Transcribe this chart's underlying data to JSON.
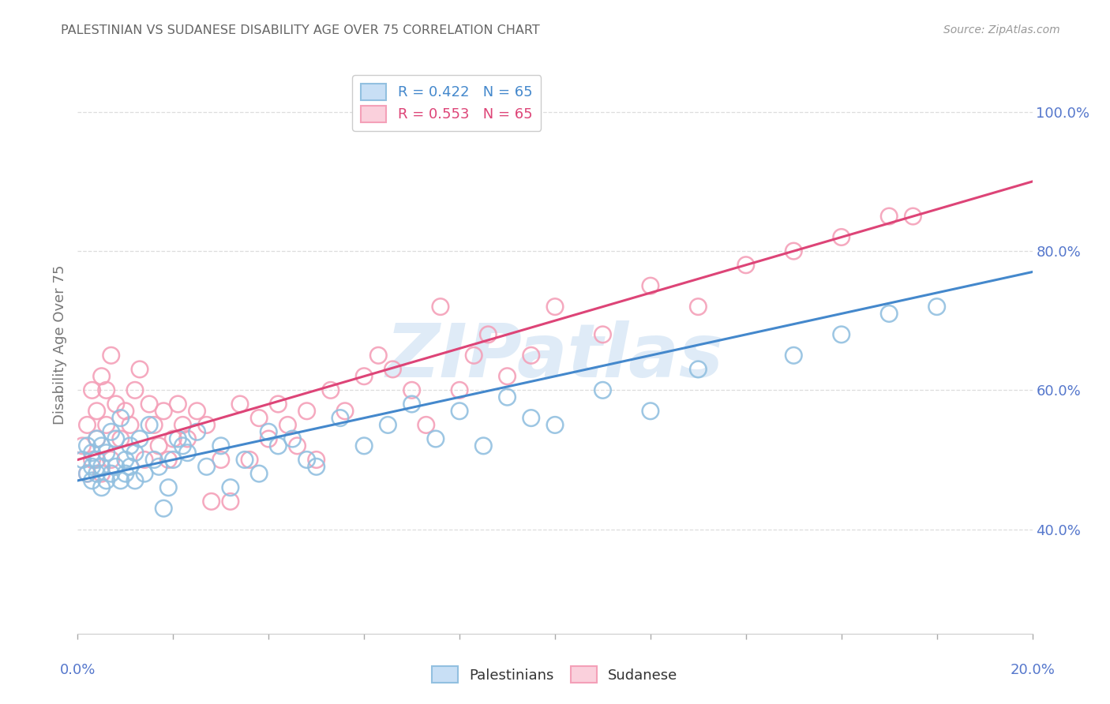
{
  "title": "PALESTINIAN VS SUDANESE DISABILITY AGE OVER 75 CORRELATION CHART",
  "source": "Source: ZipAtlas.com",
  "ylabel": "Disability Age Over 75",
  "legend_blue": "R = 0.422   N = 65",
  "legend_pink": "R = 0.553   N = 65",
  "legend_label_blue": "Palestinians",
  "legend_label_pink": "Sudanese",
  "blue_scatter_color": "#92c0e0",
  "pink_scatter_color": "#f4a0b8",
  "blue_line_color": "#4488cc",
  "pink_line_color": "#dd4477",
  "watermark": "ZIPatlas",
  "background_color": "#ffffff",
  "grid_color": "#dddddd",
  "title_color": "#666666",
  "right_axis_color": "#5577cc",
  "bottom_axis_color": "#5577cc",
  "xmin": 0.0,
  "xmax": 0.2,
  "ymin": 0.25,
  "ymax": 1.08,
  "ytick_values": [
    0.4,
    0.6,
    0.8,
    1.0
  ],
  "ytick_labels": [
    "40.0%",
    "60.0%",
    "80.0%",
    "100.0%"
  ],
  "xtick_labels": [
    "0.0%",
    "20.0%"
  ],
  "R_blue": 0.422,
  "R_pink": 0.553,
  "N": 65,
  "blue_x": [
    0.001,
    0.002,
    0.002,
    0.003,
    0.003,
    0.003,
    0.004,
    0.004,
    0.004,
    0.005,
    0.005,
    0.005,
    0.006,
    0.006,
    0.007,
    0.007,
    0.008,
    0.008,
    0.009,
    0.009,
    0.01,
    0.01,
    0.011,
    0.011,
    0.012,
    0.012,
    0.013,
    0.014,
    0.015,
    0.016,
    0.017,
    0.018,
    0.019,
    0.02,
    0.021,
    0.022,
    0.023,
    0.025,
    0.027,
    0.03,
    0.032,
    0.035,
    0.038,
    0.04,
    0.042,
    0.045,
    0.048,
    0.05,
    0.055,
    0.06,
    0.065,
    0.07,
    0.075,
    0.08,
    0.085,
    0.09,
    0.095,
    0.1,
    0.11,
    0.12,
    0.13,
    0.15,
    0.16,
    0.17,
    0.18
  ],
  "blue_y": [
    0.5,
    0.48,
    0.52,
    0.47,
    0.49,
    0.51,
    0.48,
    0.5,
    0.53,
    0.46,
    0.49,
    0.52,
    0.47,
    0.51,
    0.48,
    0.54,
    0.49,
    0.53,
    0.47,
    0.56,
    0.5,
    0.48,
    0.49,
    0.52,
    0.47,
    0.51,
    0.53,
    0.48,
    0.55,
    0.5,
    0.49,
    0.43,
    0.46,
    0.5,
    0.53,
    0.52,
    0.51,
    0.54,
    0.49,
    0.52,
    0.46,
    0.5,
    0.48,
    0.54,
    0.52,
    0.53,
    0.5,
    0.49,
    0.56,
    0.52,
    0.55,
    0.58,
    0.53,
    0.57,
    0.52,
    0.59,
    0.56,
    0.55,
    0.6,
    0.57,
    0.63,
    0.65,
    0.68,
    0.71,
    0.72
  ],
  "pink_x": [
    0.001,
    0.002,
    0.002,
    0.003,
    0.003,
    0.004,
    0.004,
    0.005,
    0.005,
    0.006,
    0.006,
    0.007,
    0.007,
    0.008,
    0.009,
    0.01,
    0.011,
    0.012,
    0.013,
    0.014,
    0.015,
    0.016,
    0.017,
    0.018,
    0.019,
    0.02,
    0.021,
    0.022,
    0.023,
    0.025,
    0.027,
    0.028,
    0.03,
    0.032,
    0.034,
    0.036,
    0.038,
    0.04,
    0.042,
    0.044,
    0.046,
    0.048,
    0.05,
    0.053,
    0.056,
    0.06,
    0.063,
    0.066,
    0.07,
    0.073,
    0.076,
    0.08,
    0.083,
    0.086,
    0.09,
    0.095,
    0.1,
    0.11,
    0.12,
    0.13,
    0.14,
    0.15,
    0.16,
    0.17,
    0.175
  ],
  "pink_y": [
    0.52,
    0.55,
    0.48,
    0.6,
    0.5,
    0.53,
    0.57,
    0.48,
    0.62,
    0.55,
    0.6,
    0.5,
    0.65,
    0.58,
    0.53,
    0.57,
    0.55,
    0.6,
    0.63,
    0.5,
    0.58,
    0.55,
    0.52,
    0.57,
    0.5,
    0.53,
    0.58,
    0.55,
    0.53,
    0.57,
    0.55,
    0.44,
    0.5,
    0.44,
    0.58,
    0.5,
    0.56,
    0.53,
    0.58,
    0.55,
    0.52,
    0.57,
    0.5,
    0.6,
    0.57,
    0.62,
    0.65,
    0.63,
    0.6,
    0.55,
    0.72,
    0.6,
    0.65,
    0.68,
    0.62,
    0.65,
    0.72,
    0.68,
    0.75,
    0.72,
    0.78,
    0.8,
    0.82,
    0.85,
    0.85
  ]
}
